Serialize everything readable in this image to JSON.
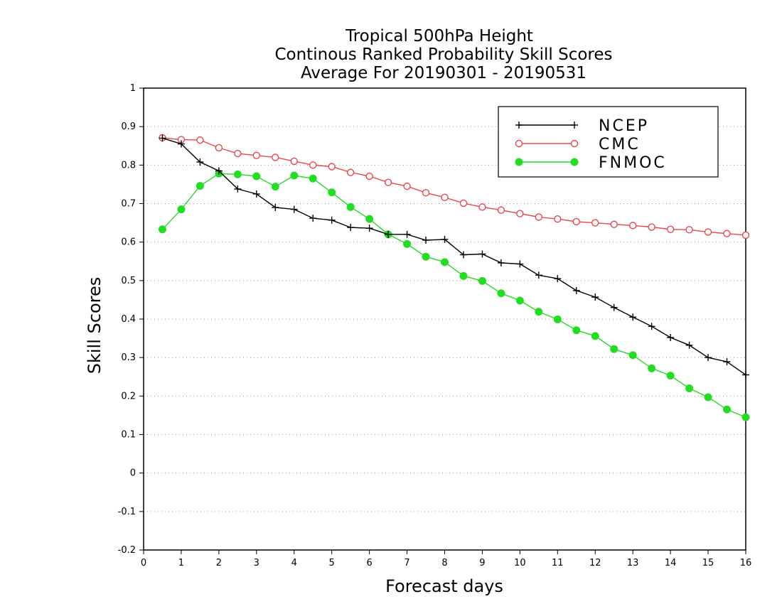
{
  "chart_data": {
    "type": "line",
    "title_lines": [
      "Tropical 500hPa Height",
      "Continous Ranked Probability Skill Scores",
      "Average For 20190301 - 20190531"
    ],
    "xlabel": "Forecast days",
    "ylabel": "Skill Scores",
    "xlim": [
      0,
      16
    ],
    "ylim": [
      -0.2,
      1
    ],
    "x_ticks": [
      0,
      1,
      2,
      3,
      4,
      5,
      6,
      7,
      8,
      9,
      10,
      11,
      12,
      13,
      14,
      15,
      16
    ],
    "x_tick_labels": [
      "0",
      "1",
      "2",
      "3",
      "4",
      "5",
      "6",
      "7",
      "8",
      "9",
      "10",
      "11",
      "12",
      "13",
      "14",
      "15",
      "16"
    ],
    "y_ticks": [
      -0.2,
      -0.1,
      0,
      0.1,
      0.2,
      0.3,
      0.4,
      0.5,
      0.6,
      0.7,
      0.8,
      0.9,
      1
    ],
    "y_tick_labels": [
      "-0.2",
      "-0.1",
      "0",
      "0.1",
      "0.2",
      "0.3",
      "0.4",
      "0.5",
      "0.6",
      "0.7",
      "0.8",
      "0.9",
      "1"
    ],
    "grid": "horizontal dotted",
    "legend_position": "top-right",
    "x": [
      0.5,
      1,
      1.5,
      2,
      2.5,
      3,
      3.5,
      4,
      4.5,
      5,
      5.5,
      6,
      6.5,
      7,
      7.5,
      8,
      8.5,
      9,
      9.5,
      10,
      10.5,
      11,
      11.5,
      12,
      12.5,
      13,
      13.5,
      14,
      14.5,
      15,
      15.5,
      16
    ],
    "series": [
      {
        "name": "NCEP",
        "color": "#000000",
        "marker": "plus",
        "values": [
          0.87,
          0.855,
          0.808,
          0.785,
          0.738,
          0.725,
          0.69,
          0.685,
          0.662,
          0.657,
          0.638,
          0.636,
          0.62,
          0.62,
          0.605,
          0.607,
          0.567,
          0.569,
          0.546,
          0.543,
          0.514,
          0.505,
          0.474,
          0.457,
          0.43,
          0.405,
          0.381,
          0.352,
          0.332,
          0.3,
          0.289,
          0.255
        ]
      },
      {
        "name": "CMC",
        "color": "#e8474c",
        "marker": "open-circle",
        "values": [
          0.871,
          0.866,
          0.865,
          0.845,
          0.83,
          0.825,
          0.82,
          0.81,
          0.8,
          0.796,
          0.781,
          0.771,
          0.755,
          0.745,
          0.728,
          0.716,
          0.701,
          0.691,
          0.683,
          0.674,
          0.665,
          0.66,
          0.653,
          0.65,
          0.646,
          0.643,
          0.639,
          0.633,
          0.632,
          0.626,
          0.622,
          0.618
        ]
      },
      {
        "name": "FNMOC",
        "color": "#22dd22",
        "marker": "filled-circle",
        "values": [
          0.633,
          0.685,
          0.746,
          0.778,
          0.776,
          0.771,
          0.744,
          0.773,
          0.765,
          0.729,
          0.691,
          0.66,
          0.62,
          0.595,
          0.562,
          0.548,
          0.512,
          0.499,
          0.467,
          0.448,
          0.419,
          0.399,
          0.371,
          0.356,
          0.322,
          0.306,
          0.272,
          0.253,
          0.22,
          0.197,
          0.165,
          0.145
        ]
      }
    ]
  }
}
